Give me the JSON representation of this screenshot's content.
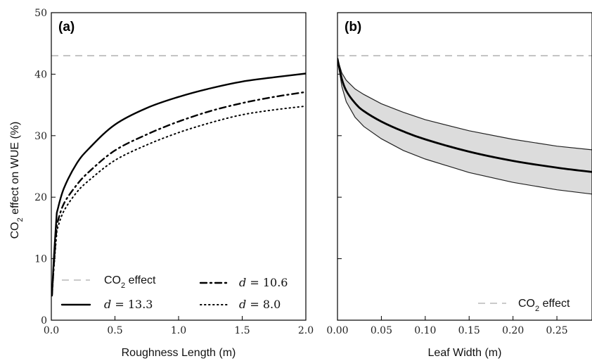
{
  "ylabel_parts": {
    "a": "CO",
    "sub": "2",
    "b": " effect on WUE (%)"
  },
  "chart_data": [
    {
      "type": "line",
      "panel_label": "(a)",
      "xlabel": "Roughness Length (m)",
      "xlim": [
        0,
        2.0
      ],
      "ylim": [
        0,
        50
      ],
      "xticks": [
        "0.0",
        "0.5",
        "1.0",
        "1.5",
        "2.0"
      ],
      "yticks": [
        "0",
        "10",
        "20",
        "30",
        "40",
        "50"
      ],
      "reference_line": {
        "y": 43,
        "legend_a": "CO",
        "legend_sub": "2",
        "legend_b": " effect",
        "style": "dashed",
        "color": "#aaaaaa"
      },
      "series": [
        {
          "name_var": "d",
          "name_val": " = 13.3",
          "style": "solid",
          "x": [
            0.005,
            0.02,
            0.04,
            0.05,
            0.1,
            0.2,
            0.3,
            0.5,
            0.75,
            1.0,
            1.25,
            1.5,
            1.75,
            2.0
          ],
          "y": [
            4,
            10,
            16.5,
            18,
            21.5,
            25.5,
            28,
            31.8,
            34.5,
            36.3,
            37.7,
            38.8,
            39.5,
            40.1
          ]
        },
        {
          "name_var": "d",
          "name_val": " = 10.6",
          "style": "dashdot",
          "x": [
            0.005,
            0.02,
            0.04,
            0.05,
            0.1,
            0.2,
            0.3,
            0.5,
            0.75,
            1.0,
            1.25,
            1.5,
            1.75,
            2.0
          ],
          "y": [
            4,
            9,
            14.5,
            16,
            19,
            22,
            24.2,
            27.6,
            30.2,
            32.3,
            34,
            35.3,
            36.3,
            37.1
          ]
        },
        {
          "name_var": "d",
          "name_val": " = 8.0",
          "style": "dotted",
          "x": [
            0.005,
            0.02,
            0.04,
            0.05,
            0.1,
            0.2,
            0.3,
            0.5,
            0.75,
            1.0,
            1.25,
            1.5,
            1.75,
            2.0
          ],
          "y": [
            4,
            8.5,
            13.5,
            15,
            17.8,
            20.8,
            22.8,
            26,
            28.5,
            30.5,
            32.1,
            33.4,
            34.2,
            34.8
          ]
        }
      ],
      "legend": "bottom"
    },
    {
      "type": "line",
      "panel_label": "(b)",
      "xlabel": "Leaf Width (m)",
      "xlim": [
        0,
        0.29
      ],
      "ylim": [
        0,
        50
      ],
      "xticks": [
        "0.00",
        "0.05",
        "0.10",
        "0.15",
        "0.20",
        "0.25"
      ],
      "xtick_values": [
        0,
        0.05,
        0.1,
        0.15,
        0.2,
        0.25
      ],
      "reference_line": {
        "y": 43,
        "legend_a": "CO",
        "legend_sub": "2",
        "legend_b": " effect",
        "style": "dashed",
        "color": "#aaaaaa"
      },
      "band": {
        "x": [
          0.0,
          0.005,
          0.01,
          0.02,
          0.03,
          0.05,
          0.075,
          0.1,
          0.15,
          0.2,
          0.25,
          0.29
        ],
        "upper": [
          42.5,
          40.2,
          39,
          37.6,
          36.7,
          35.2,
          33.8,
          32.6,
          30.8,
          29.4,
          28.3,
          27.7
        ],
        "lower": [
          42.5,
          38,
          35.5,
          33,
          31.5,
          29.5,
          27.6,
          26.2,
          24,
          22.4,
          21.2,
          20.5
        ],
        "color": "#dcdcdc"
      },
      "series": [
        {
          "style": "solid-thick",
          "x": [
            0.0,
            0.005,
            0.01,
            0.02,
            0.03,
            0.05,
            0.075,
            0.1,
            0.15,
            0.2,
            0.25,
            0.29
          ],
          "y": [
            42.5,
            39.2,
            37.3,
            35.3,
            34,
            32.3,
            30.7,
            29.4,
            27.4,
            25.9,
            24.8,
            24.1
          ]
        }
      ],
      "legend": "bottom-right"
    }
  ]
}
